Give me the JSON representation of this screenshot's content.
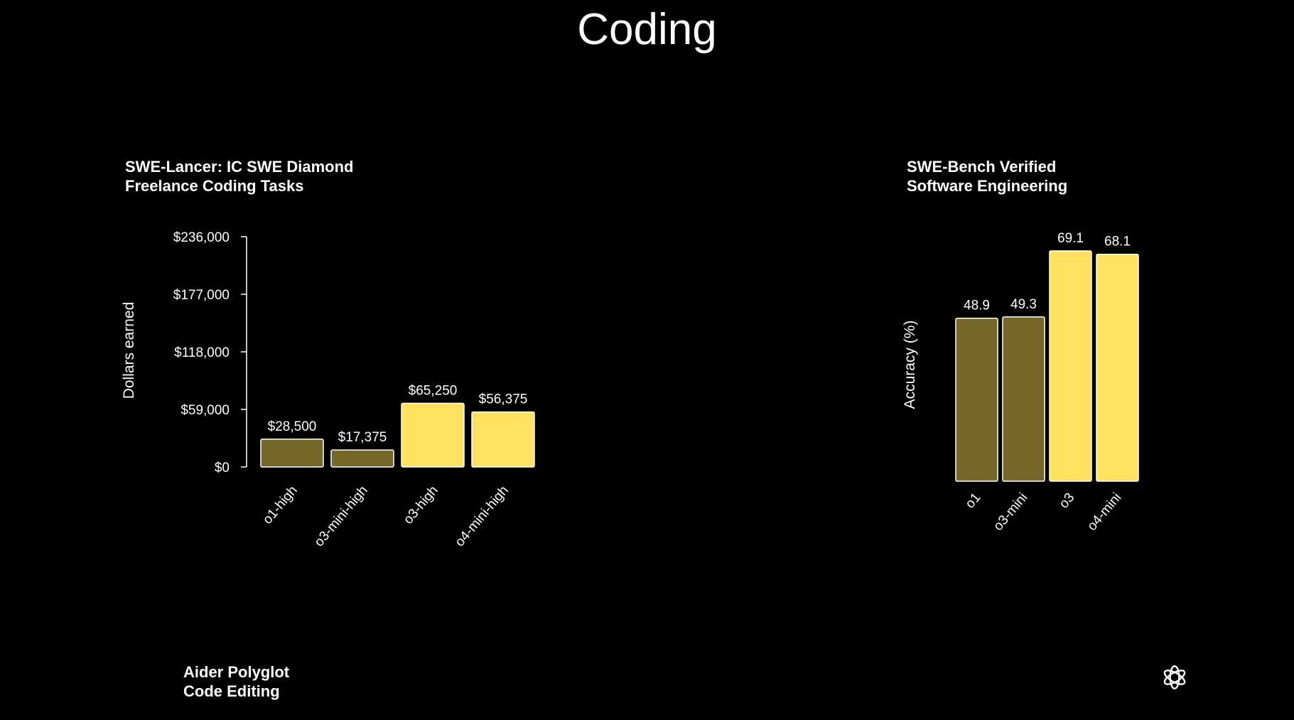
{
  "page": {
    "title": "Coding"
  },
  "colors": {
    "background": "#000000",
    "older_model": "#75672a",
    "new_model": "#ffe05f",
    "bar_stroke": "#ffffff"
  },
  "chart_data": [
    {
      "id": "swe-lancer",
      "type": "bar",
      "title_lines": [
        "SWE-Lancer: IC SWE Diamond",
        "Freelance Coding Tasks"
      ],
      "ylabel": "Dollars earned",
      "xlabel": "",
      "categories": [
        "o1-high",
        "o3-mini-high",
        "o3-high",
        "o4-mini-high"
      ],
      "values": [
        28500,
        17375,
        65250,
        56375
      ],
      "value_labels": [
        "$28,500",
        "$17,375",
        "$65,250",
        "$56,375"
      ],
      "highlight": [
        false,
        false,
        true,
        true
      ],
      "ylim": [
        0,
        236000
      ],
      "yticks": [
        0,
        59000,
        118000,
        177000,
        236000
      ],
      "ytick_labels": [
        "$0",
        "$59,000",
        "$118,000",
        "$177,000",
        "$236,000"
      ],
      "grid": false
    },
    {
      "id": "swe-bench",
      "type": "bar",
      "title_lines": [
        "SWE-Bench Verified",
        "Software Engineering"
      ],
      "ylabel": "Accuracy (%)",
      "xlabel": "",
      "categories": [
        "o1",
        "o3-mini",
        "o3",
        "o4-mini"
      ],
      "values": [
        48.9,
        49.3,
        69.1,
        68.1
      ],
      "value_labels": [
        "48.9",
        "49.3",
        "69.1",
        "68.1"
      ],
      "highlight": [
        false,
        false,
        true,
        true
      ],
      "ylim": [
        0,
        69.1
      ],
      "grid": false
    }
  ],
  "aider": {
    "title_lines": [
      "Aider Polyglot",
      "Code Editing"
    ]
  },
  "footer": {
    "logo_icon": "openai-logo-icon"
  }
}
